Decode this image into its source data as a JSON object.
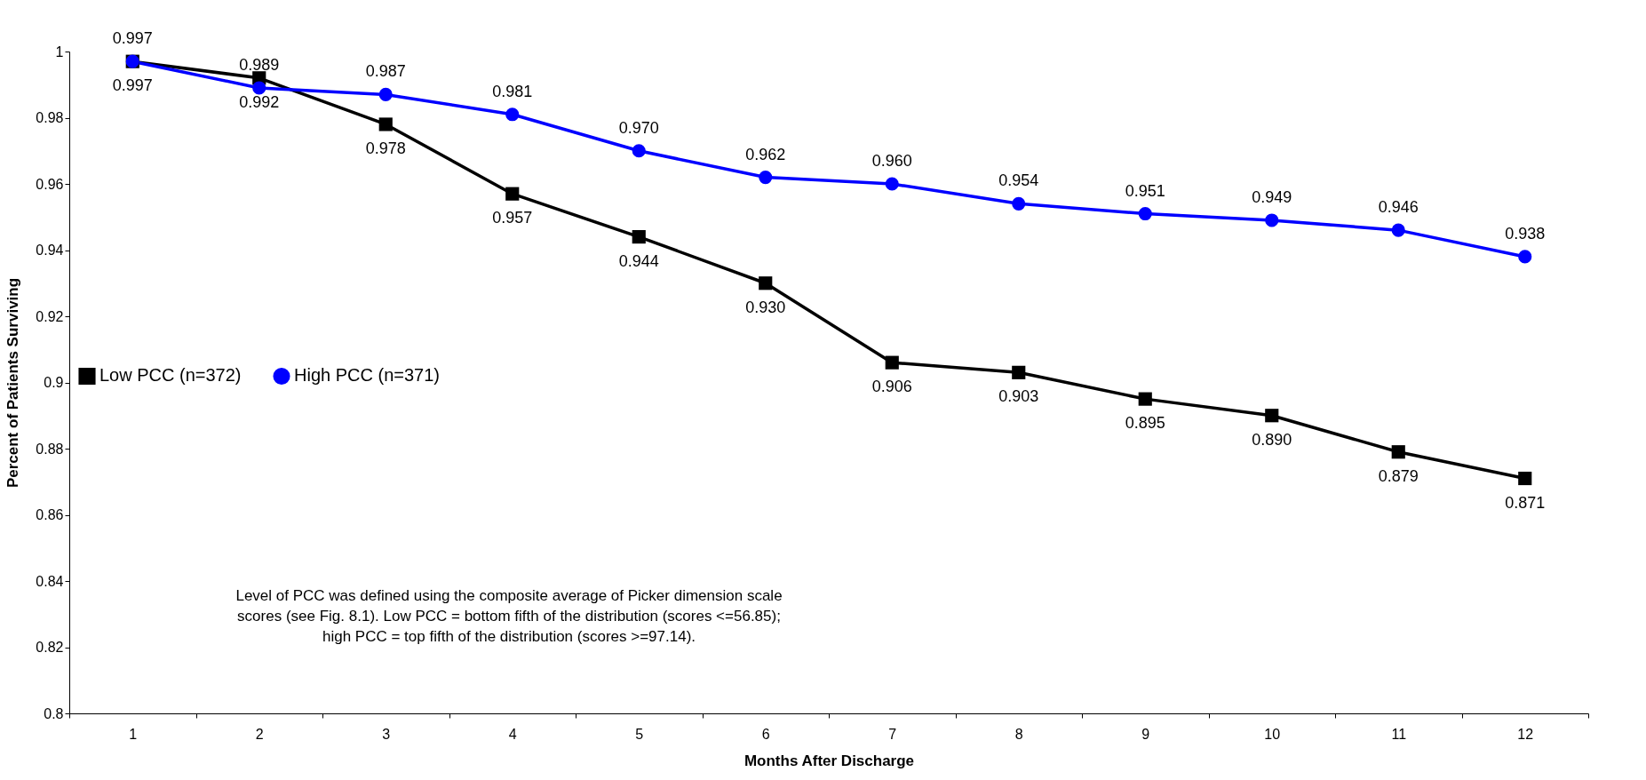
{
  "chart_data": {
    "type": "line",
    "xlabel": "Months After Discharge",
    "ylabel": "Percent of Patients Surviving",
    "categories": [
      "1",
      "2",
      "3",
      "4",
      "5",
      "6",
      "7",
      "8",
      "9",
      "10",
      "11",
      "12"
    ],
    "series": [
      {
        "name": "Low PCC (n=372)",
        "color": "#000000",
        "marker": "square",
        "values": [
          0.997,
          0.992,
          0.978,
          0.957,
          0.944,
          0.93,
          0.906,
          0.903,
          0.895,
          0.89,
          0.879,
          0.871
        ],
        "value_labels": [
          "0.997",
          "0.992",
          "0.978",
          "0.957",
          "0.944",
          "0.930",
          "0.906",
          "0.903",
          "0.895",
          "0.890",
          "0.879",
          "0.871"
        ]
      },
      {
        "name": "High PCC (n=371)",
        "color": "#0000ff",
        "marker": "circle",
        "values": [
          0.997,
          0.989,
          0.987,
          0.981,
          0.97,
          0.962,
          0.96,
          0.954,
          0.951,
          0.949,
          0.946,
          0.938
        ],
        "value_labels": [
          "0.997",
          "0.989",
          "0.987",
          "0.981",
          "0.970",
          "0.962",
          "0.960",
          "0.954",
          "0.951",
          "0.949",
          "0.946",
          "0.938"
        ]
      }
    ],
    "ylim": [
      0.8,
      1
    ],
    "yticks": [
      0.8,
      0.82,
      0.84,
      0.86,
      0.88,
      0.9,
      0.92,
      0.94,
      0.96,
      0.98,
      1
    ],
    "grid": false,
    "legend": "left",
    "annotations": [
      "Level of PCC was defined using the composite average of Picker dimension scale\n  scores (see Fig. 8.1).  Low PCC = bottom fifth of the distribution (scores <=56.85);\nhigh PCC = top fifth of the distribution (scores >=97.14)."
    ]
  }
}
